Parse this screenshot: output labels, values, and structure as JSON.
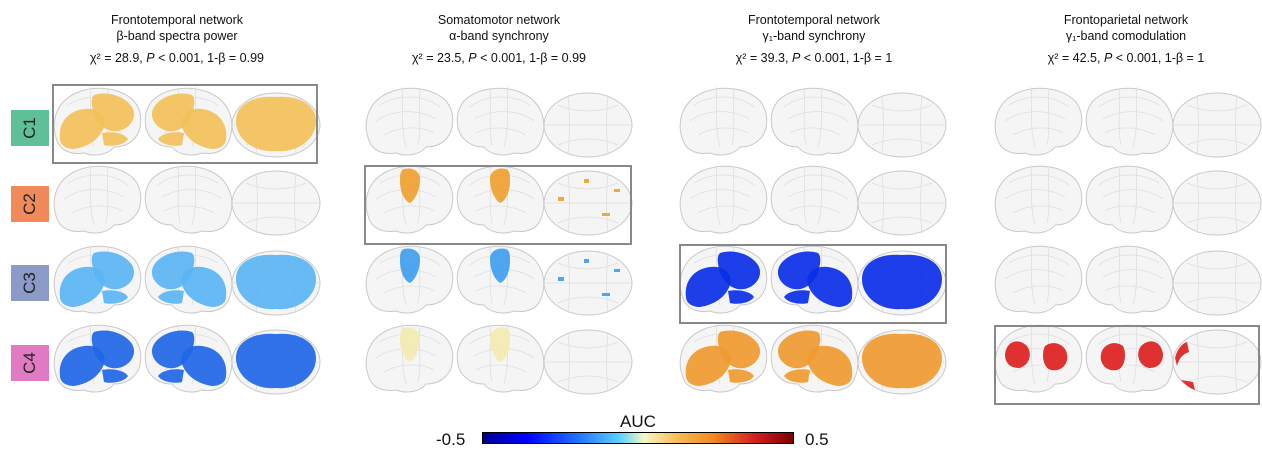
{
  "panels": [
    {
      "network": "Frontotemporal network",
      "feature": "β-band spectra power",
      "chi2": "χ² = 28.9,",
      "p_label": "P",
      "p_value": "< 0.001, 1-β = 0.99",
      "highlight_row": 0,
      "row_colors": [
        "#f2c05a",
        null,
        "#5ab4f2",
        "#1f66e6"
      ]
    },
    {
      "network": "Somatomotor network",
      "feature": "α-band synchrony",
      "chi2": "χ² = 23.5,",
      "p_label": "P",
      "p_value": "< 0.001, 1-β = 0.99",
      "highlight_row": 1,
      "row_colors": [
        null,
        "#f0a030",
        "#3f9ef0",
        "#f3eab0"
      ]
    },
    {
      "network": "Frontotemporal network",
      "feature": "γ₁-band synchrony",
      "chi2": "χ² = 39.3,",
      "p_label": "P",
      "p_value": "< 0.001, 1-β = 1",
      "highlight_row": 2,
      "row_colors": [
        null,
        null,
        "#0a2ee6",
        "#f09a30"
      ]
    },
    {
      "network": "Frontoparietal network",
      "feature": "γ₁-band comodulation",
      "chi2": "χ² = 42.5,",
      "p_label": "P",
      "p_value": "< 0.001, 1-β = 1",
      "highlight_row": 3,
      "row_colors": [
        null,
        null,
        null,
        "#dd1f1f"
      ]
    }
  ],
  "row_labels": [
    {
      "label": "C1",
      "color": "#5fbf97"
    },
    {
      "label": "C2",
      "color": "#f08a5a"
    },
    {
      "label": "C3",
      "color": "#8c9ac8"
    },
    {
      "label": "C4",
      "color": "#e07bc3"
    }
  ],
  "colorbar": {
    "title": "AUC",
    "min_label": "-0.5",
    "max_label": "0.5"
  }
}
